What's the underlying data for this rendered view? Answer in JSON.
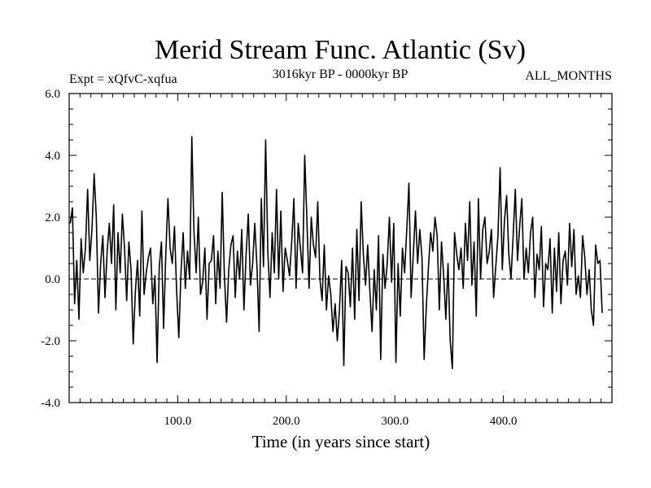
{
  "chart_data": {
    "type": "line",
    "title": "Merid Stream Func. Atlantic (Sv)",
    "subtitle": "3016kyr BP - 0000kyr BP",
    "expt_label": "Expt = xQfvC-xqfua",
    "season_label": "ALL_MONTHS",
    "xlabel": "Time (in years since start)",
    "ylabel": "",
    "xlim": [
      0,
      500
    ],
    "ylim": [
      -4,
      6
    ],
    "x_ticks": [
      100,
      200,
      300,
      400
    ],
    "x_tick_labels": [
      "100.0",
      "200.0",
      "300.0",
      "400.0"
    ],
    "y_ticks": [
      -4,
      -2,
      0,
      2,
      4,
      6
    ],
    "y_tick_labels": [
      "-4.0",
      "-2.0",
      "0.0",
      "2.0",
      "4.0",
      "6.0"
    ],
    "zero_line": true,
    "series": [
      {
        "name": "Merid Stream Func. Atlantic",
        "x_start": 1,
        "x_step": 2,
        "values": [
          1.8,
          2.3,
          -0.8,
          0.6,
          -1.3,
          1.3,
          0.2,
          1.0,
          2.9,
          0.6,
          1.6,
          3.4,
          2.0,
          -1.1,
          0.5,
          1.4,
          -0.6,
          0.9,
          1.8,
          0.5,
          2.4,
          -1.0,
          1.5,
          0.2,
          2.1,
          1.0,
          -0.7,
          1.2,
          0.3,
          -2.1,
          -0.4,
          0.6,
          -1.2,
          2.2,
          -0.5,
          0.2,
          0.7,
          1.0,
          -0.8,
          0.1,
          -2.7,
          0.4,
          1.2,
          -1.6,
          0.8,
          2.6,
          1.0,
          0.5,
          1.7,
          -0.4,
          -1.9,
          0.2,
          1.5,
          -0.3,
          0.9,
          0.0,
          4.6,
          1.5,
          0.2,
          2.0,
          -0.5,
          -0.1,
          1.0,
          -1.3,
          0.5,
          0.6,
          1.4,
          -0.8,
          0.9,
          -0.3,
          2.8,
          0.1,
          -1.4,
          0.3,
          1.1,
          1.4,
          -0.6,
          0.9,
          0.0,
          1.6,
          -1.0,
          0.8,
          2.1,
          -0.2,
          0.5,
          1.8,
          0.4,
          -1.7,
          2.6,
          0.4,
          4.5,
          0.9,
          -0.6,
          1.5,
          0.2,
          2.9,
          0.0,
          2.2,
          -0.4,
          1.0,
          0.6,
          0.1,
          1.2,
          2.6,
          -0.3,
          1.8,
          1.0,
          0.2,
          4.0,
          1.9,
          -0.3,
          2.0,
          1.1,
          0.7,
          2.5,
          0.0,
          -0.7,
          1.1,
          -1.0,
          0.1,
          -0.5,
          -1.7,
          -0.8,
          -2.0,
          -1.0,
          0.6,
          -2.8,
          0.4,
          0.2,
          -0.9,
          1.0,
          -1.3,
          1.6,
          -0.7,
          2.5,
          0.8,
          -0.2,
          1.1,
          -0.4,
          -1.7,
          0.3,
          -1.0,
          1.4,
          -2.6,
          0.8,
          -0.3,
          0.5,
          2.0,
          -0.1,
          1.8,
          -2.7,
          0.5,
          -1.2,
          1.0,
          0.2,
          1.6,
          3.1,
          -0.6,
          0.8,
          2.2,
          0.5,
          1.6,
          0.7,
          -2.6,
          -0.9,
          0.4,
          1.5,
          0.9,
          2.0,
          1.4,
          -1.0,
          1.2,
          0.1,
          -1.3,
          0.5,
          -2.0,
          -2.9,
          1.5,
          0.8,
          0.3,
          1.0,
          -0.3,
          1.8,
          0.6,
          2.5,
          -0.2,
          1.2,
          -1.2,
          2.6,
          0.0,
          1.6,
          2.0,
          0.5,
          0.9,
          1.6,
          -0.6,
          0.4,
          1.4,
          3.6,
          0.3,
          1.9,
          2.7,
          0.8,
          0.0,
          1.4,
          2.9,
          0.6,
          1.7,
          2.6,
          0.0,
          1.0,
          0.2,
          1.5,
          2.0,
          -0.6,
          0.8,
          0.3,
          1.7,
          -0.9,
          0.5,
          0.3,
          1.3,
          -1.1,
          1.0,
          -0.4,
          1.5,
          -0.8,
          0.6,
          0.9,
          -0.2,
          1.8,
          0.4,
          1.6,
          -0.5,
          0.1,
          -0.6,
          1.4,
          0.7,
          -0.5,
          0.3,
          -1.0,
          -1.5,
          1.1,
          0.5,
          0.6,
          -1.1
        ]
      }
    ]
  }
}
